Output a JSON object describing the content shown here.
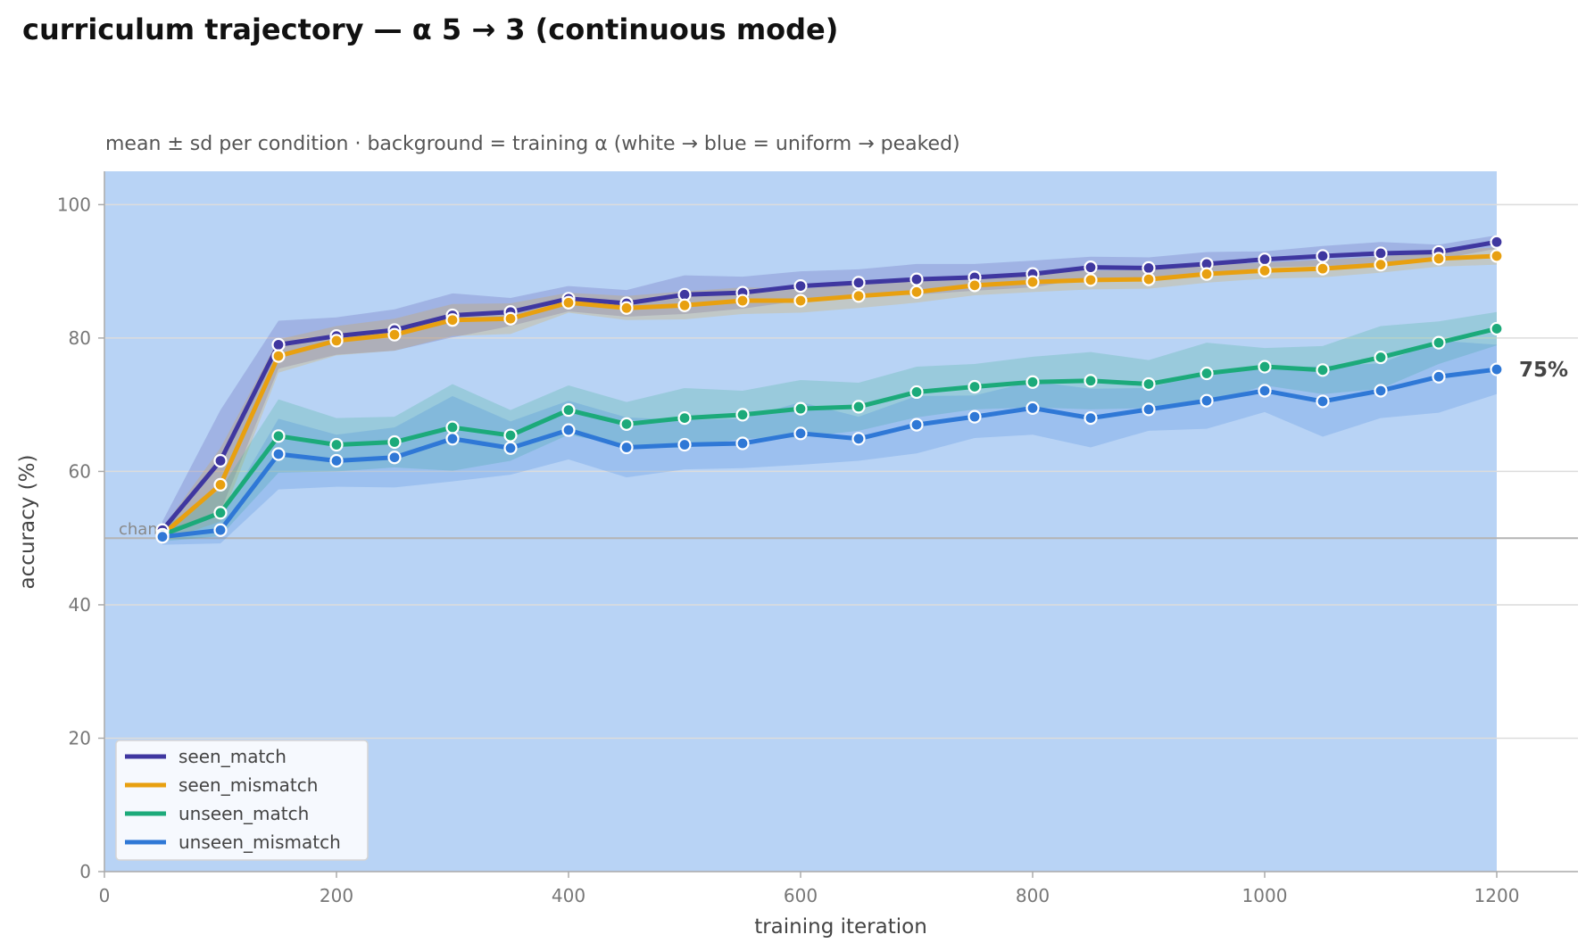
{
  "chart_data": {
    "type": "line",
    "title": "curriculum trajectory — α 5 → 3 (continuous mode)",
    "subtitle": "mean ± sd per condition · background = training α (white → blue = uniform → peaked)",
    "xlabel": "training iteration",
    "ylabel": "accuracy (%)",
    "xlim": [
      0,
      1270
    ],
    "ylim": [
      0,
      105
    ],
    "xticks": [
      0,
      200,
      400,
      600,
      800,
      1000,
      1200
    ],
    "yticks": [
      0,
      20,
      40,
      60,
      80,
      100
    ],
    "grid": "horizontal",
    "background_color": "#b8d3f5",
    "background_range": [
      0,
      1200
    ],
    "legend_position": "lower-left",
    "reference_line": {
      "y": 50,
      "label": "chance"
    },
    "end_annotation": {
      "series": "unseen_mismatch",
      "text": "75%"
    },
    "x": [
      50,
      100,
      150,
      200,
      250,
      300,
      350,
      400,
      450,
      500,
      550,
      600,
      650,
      700,
      750,
      800,
      850,
      900,
      950,
      1000,
      1050,
      1100,
      1150,
      1200
    ],
    "series": [
      {
        "name": "seen_match",
        "color": "#3f37a0",
        "values": [
          51.2,
          61.6,
          79.0,
          80.3,
          81.2,
          83.4,
          83.9,
          85.9,
          85.2,
          86.5,
          86.8,
          87.8,
          88.3,
          88.8,
          89.1,
          89.6,
          90.6,
          90.5,
          91.1,
          91.8,
          92.3,
          92.7,
          92.9,
          94.4
        ],
        "sd": [
          1.3,
          7.6,
          3.6,
          2.8,
          3.1,
          3.3,
          2.1,
          1.9,
          2.0,
          2.9,
          2.4,
          2.2,
          2.0,
          2.3,
          2.0,
          2.0,
          1.6,
          1.6,
          1.8,
          1.2,
          1.5,
          1.7,
          1.1,
          1.0
        ]
      },
      {
        "name": "seen_mismatch",
        "color": "#e8a010",
        "values": [
          50.5,
          58.0,
          77.3,
          79.6,
          80.5,
          82.7,
          82.9,
          85.3,
          84.5,
          84.9,
          85.6,
          85.6,
          86.3,
          86.9,
          87.9,
          88.4,
          88.7,
          88.8,
          89.6,
          90.1,
          90.4,
          91.0,
          91.9,
          92.3
        ],
        "sd": [
          1.0,
          5.5,
          2.5,
          2.2,
          2.4,
          2.4,
          2.3,
          1.5,
          1.8,
          2.1,
          2.0,
          1.8,
          1.8,
          1.6,
          1.5,
          1.5,
          1.4,
          1.4,
          1.3,
          1.2,
          1.3,
          1.2,
          1.2,
          1.3
        ]
      },
      {
        "name": "unseen_match",
        "color": "#1caa7a",
        "values": [
          50.5,
          53.8,
          65.3,
          64.0,
          64.4,
          66.6,
          65.4,
          69.2,
          67.1,
          68.0,
          68.5,
          69.4,
          69.7,
          71.9,
          72.7,
          73.4,
          73.6,
          73.1,
          74.7,
          75.7,
          75.2,
          77.1,
          79.3,
          81.4
        ],
        "sd": [
          1.0,
          3.5,
          5.5,
          4.0,
          3.8,
          6.5,
          3.8,
          3.7,
          3.3,
          4.5,
          3.6,
          4.3,
          3.6,
          3.8,
          3.4,
          3.8,
          4.3,
          3.6,
          4.6,
          2.8,
          3.6,
          4.7,
          3.2,
          2.5
        ]
      },
      {
        "name": "unseen_mismatch",
        "color": "#2f78d6",
        "values": [
          50.2,
          51.2,
          62.6,
          61.6,
          62.1,
          64.9,
          63.5,
          66.2,
          63.6,
          64.0,
          64.2,
          65.7,
          64.9,
          67.0,
          68.2,
          69.5,
          68.0,
          69.3,
          70.6,
          72.1,
          70.5,
          72.1,
          74.2,
          75.3
        ],
        "sd": [
          1.2,
          2.0,
          5.3,
          3.9,
          4.5,
          6.4,
          4.0,
          4.4,
          4.5,
          3.7,
          3.7,
          4.7,
          3.3,
          4.3,
          3.2,
          4.0,
          4.4,
          3.2,
          4.2,
          3.2,
          5.3,
          4.1,
          5.4,
          3.7
        ]
      }
    ]
  }
}
